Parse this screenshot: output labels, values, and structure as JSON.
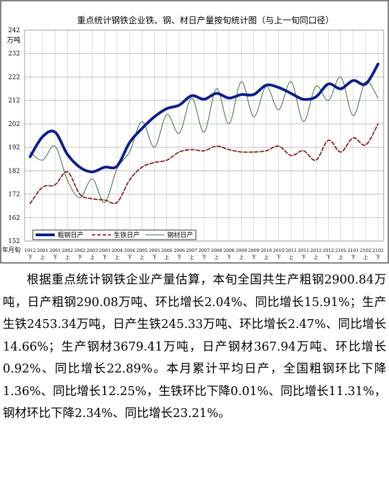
{
  "chart_data": {
    "type": "line",
    "title": "重点统计钢铁企业铁、钢、材日产量按旬统计图（与上一旬同口径）",
    "ylabel": "万吨",
    "xlabel": "年月旬",
    "ylim": [
      152,
      242
    ],
    "yticks": [
      152,
      162,
      172,
      182,
      192,
      202,
      212,
      222,
      232,
      242
    ],
    "grid": true,
    "legend_position": "bottom-left",
    "categories": [
      {
        "ym": "1912",
        "p": "下"
      },
      {
        "ym": "2001",
        "p": "上"
      },
      {
        "ym": "2001",
        "p": "下"
      },
      {
        "ym": "2002",
        "p": "上"
      },
      {
        "ym": "2002",
        "p": "下"
      },
      {
        "ym": "2003",
        "p": "上"
      },
      {
        "ym": "2003",
        "p": "下"
      },
      {
        "ym": "2004",
        "p": "上"
      },
      {
        "ym": "2004",
        "p": "下"
      },
      {
        "ym": "2005",
        "p": "上"
      },
      {
        "ym": "2005",
        "p": "下"
      },
      {
        "ym": "2006",
        "p": "上"
      },
      {
        "ym": "2006",
        "p": "下"
      },
      {
        "ym": "2007",
        "p": "上"
      },
      {
        "ym": "2007",
        "p": "下"
      },
      {
        "ym": "2008",
        "p": "上"
      },
      {
        "ym": "2008",
        "p": "下"
      },
      {
        "ym": "2009",
        "p": "上"
      },
      {
        "ym": "2009",
        "p": "下"
      },
      {
        "ym": "2010",
        "p": "上"
      },
      {
        "ym": "2010",
        "p": "下"
      },
      {
        "ym": "2011",
        "p": "上"
      },
      {
        "ym": "2011",
        "p": "下"
      },
      {
        "ym": "2012",
        "p": "上"
      },
      {
        "ym": "2012",
        "p": "下"
      },
      {
        "ym": "2101",
        "p": "上"
      },
      {
        "ym": "2101",
        "p": "下"
      },
      {
        "ym": "2102",
        "p": "上"
      },
      {
        "ym": "2102",
        "p": "下"
      }
    ],
    "series": [
      {
        "name": "粗钢日产",
        "color": "#0a1e8c",
        "style": "solid-thick",
        "values": [
          188,
          196.5,
          198.5,
          189,
          183.5,
          181.5,
          183.5,
          184,
          194,
          200,
          205,
          208.5,
          210,
          214,
          212.5,
          215,
          213,
          214.5,
          214.5,
          218.5,
          217.5,
          215,
          212.5,
          213.5,
          219,
          217,
          220.5,
          219,
          227.5
        ]
      },
      {
        "name": "生铁日产",
        "color": "#8b1a1a",
        "style": "dashed",
        "values": [
          168,
          175,
          176,
          181.5,
          172,
          170,
          169.5,
          168.5,
          178,
          183.5,
          185.5,
          186.5,
          190,
          191,
          190.5,
          192.5,
          191,
          190,
          190,
          190.5,
          192.5,
          188.5,
          190.5,
          186.5,
          195,
          190,
          196,
          193,
          202
        ]
      },
      {
        "name": "钢材日产",
        "color": "#2e6b2e",
        "style": "solid-thin",
        "values": [
          190,
          186.5,
          192.5,
          178,
          170.5,
          178.5,
          168.5,
          183,
          190,
          203,
          192,
          206,
          198,
          213,
          198.5,
          217,
          202,
          220,
          205,
          218,
          208,
          220,
          203,
          218,
          212,
          222,
          205.5,
          220,
          213
        ]
      }
    ]
  },
  "article": {
    "paragraph": "根据重点统计钢铁企业产量估算，本旬全国共生产粗钢2900.84万吨，日产粗钢290.08万吨、环比增长2.04%、同比增长15.91%；生产生铁2453.34万吨，日产生铁245.33万吨、环比增长2.47%、同比增长14.66%；生产钢材3679.41万吨，日产钢材367.94万吨、环比增长0.92%、同比增长22.89%。本月累计平均日产，全国粗钢环比下降1.36%、同比增长12.25%，生铁环比下降0.01%、同比增长11.31%，钢材环比下降2.34%、同比增长23.21%。"
  }
}
